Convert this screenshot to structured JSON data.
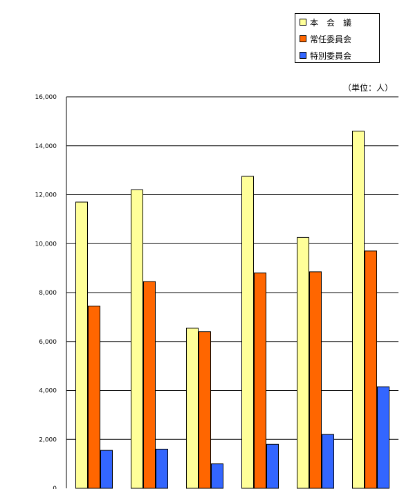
{
  "legend": {
    "items": [
      "本　会　議",
      "常任委員会",
      "特別委員会"
    ]
  },
  "unit_label": "（単位：人）",
  "colors": {
    "series_0": "#FFFF99",
    "series_1": "#FF6600",
    "series_2": "#3366FF",
    "gridline": "#000000",
    "axis": "#000000"
  },
  "chart_data": {
    "type": "bar",
    "title": "",
    "xlabel": "",
    "ylabel": "",
    "unit": "（単位：人）",
    "categories": [
      "",
      "",
      "",
      "",
      "",
      ""
    ],
    "ylim": [
      0,
      16000
    ],
    "yticks": [
      0,
      2000,
      4000,
      6000,
      8000,
      10000,
      12000,
      14000,
      16000
    ],
    "ytick_labels": [
      "0",
      "2,000",
      "4,000",
      "6,000",
      "8,000",
      "10,000",
      "12,000",
      "14,000",
      "16,000"
    ],
    "grid": true,
    "legend_position": "top-right",
    "series": [
      {
        "name": "本　会　議",
        "values": [
          11700,
          12200,
          6550,
          12750,
          10250,
          14600
        ]
      },
      {
        "name": "常任委員会",
        "values": [
          7450,
          8450,
          6400,
          8800,
          8850,
          9700
        ]
      },
      {
        "name": "特別委員会",
        "values": [
          1550,
          1600,
          1000,
          1800,
          2200,
          4150
        ]
      }
    ]
  }
}
